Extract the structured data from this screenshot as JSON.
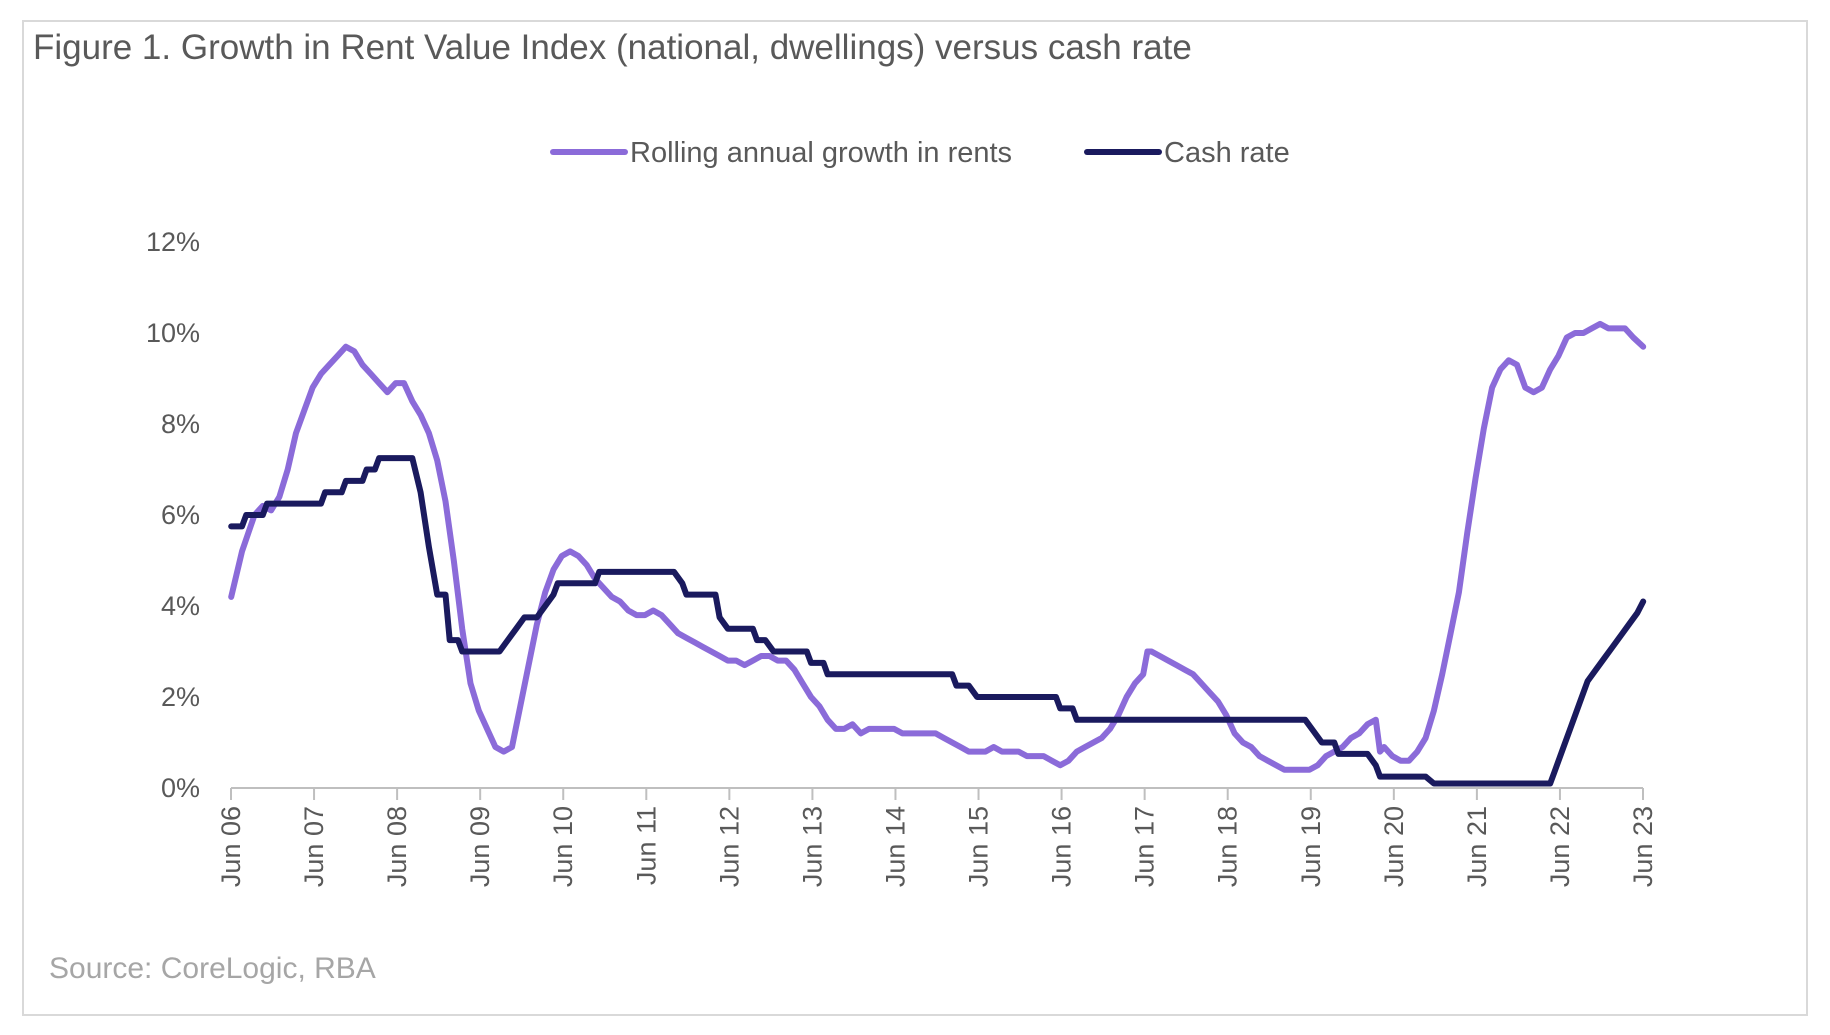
{
  "figure": {
    "title": "Figure 1. Growth in Rent Value Index (national, dwellings) versus cash rate",
    "source": "Source: CoreLogic,  RBA"
  },
  "chart_data": {
    "type": "line",
    "xlabel": "",
    "ylabel": "",
    "ylim": [
      0,
      12
    ],
    "xlim": [
      2006.417,
      2023.417
    ],
    "grid": false,
    "legend_position": "top-center",
    "y_ticks": [
      "0%",
      "2%",
      "4%",
      "6%",
      "8%",
      "10%",
      "12%"
    ],
    "x_ticks": [
      {
        "x": 2006.417,
        "label": "Jun 06"
      },
      {
        "x": 2007.417,
        "label": "Jun 07"
      },
      {
        "x": 2008.417,
        "label": "Jun 08"
      },
      {
        "x": 2009.417,
        "label": "Jun 09"
      },
      {
        "x": 2010.417,
        "label": "Jun 10"
      },
      {
        "x": 2011.417,
        "label": "Jun 11"
      },
      {
        "x": 2012.417,
        "label": "Jun 12"
      },
      {
        "x": 2013.417,
        "label": "Jun 13"
      },
      {
        "x": 2014.417,
        "label": "Jun 14"
      },
      {
        "x": 2015.417,
        "label": "Jun 15"
      },
      {
        "x": 2016.417,
        "label": "Jun 16"
      },
      {
        "x": 2017.417,
        "label": "Jun 17"
      },
      {
        "x": 2018.417,
        "label": "Jun 18"
      },
      {
        "x": 2019.417,
        "label": "Jun 19"
      },
      {
        "x": 2020.417,
        "label": "Jun 20"
      },
      {
        "x": 2021.417,
        "label": "Jun 21"
      },
      {
        "x": 2022.417,
        "label": "Jun 22"
      },
      {
        "x": 2023.417,
        "label": "Jun 23"
      }
    ],
    "series": [
      {
        "name": "Rolling annual growth in rents",
        "color": "#8b6bd9",
        "points": [
          [
            2006.42,
            4.2
          ],
          [
            2006.55,
            5.2
          ],
          [
            2006.7,
            6.0
          ],
          [
            2006.8,
            6.2
          ],
          [
            2006.9,
            6.1
          ],
          [
            2007.0,
            6.4
          ],
          [
            2007.1,
            7.0
          ],
          [
            2007.2,
            7.8
          ],
          [
            2007.3,
            8.3
          ],
          [
            2007.4,
            8.8
          ],
          [
            2007.5,
            9.1
          ],
          [
            2007.6,
            9.3
          ],
          [
            2007.7,
            9.5
          ],
          [
            2007.8,
            9.7
          ],
          [
            2007.9,
            9.6
          ],
          [
            2008.0,
            9.3
          ],
          [
            2008.1,
            9.1
          ],
          [
            2008.2,
            8.9
          ],
          [
            2008.3,
            8.7
          ],
          [
            2008.4,
            8.9
          ],
          [
            2008.5,
            8.9
          ],
          [
            2008.6,
            8.5
          ],
          [
            2008.7,
            8.2
          ],
          [
            2008.8,
            7.8
          ],
          [
            2008.9,
            7.2
          ],
          [
            2009.0,
            6.3
          ],
          [
            2009.1,
            5.0
          ],
          [
            2009.2,
            3.5
          ],
          [
            2009.3,
            2.3
          ],
          [
            2009.4,
            1.7
          ],
          [
            2009.5,
            1.3
          ],
          [
            2009.6,
            0.9
          ],
          [
            2009.7,
            0.8
          ],
          [
            2009.8,
            0.9
          ],
          [
            2009.9,
            1.8
          ],
          [
            2010.0,
            2.7
          ],
          [
            2010.1,
            3.6
          ],
          [
            2010.2,
            4.3
          ],
          [
            2010.3,
            4.8
          ],
          [
            2010.4,
            5.1
          ],
          [
            2010.5,
            5.2
          ],
          [
            2010.6,
            5.1
          ],
          [
            2010.7,
            4.9
          ],
          [
            2010.8,
            4.6
          ],
          [
            2010.9,
            4.4
          ],
          [
            2011.0,
            4.2
          ],
          [
            2011.1,
            4.1
          ],
          [
            2011.2,
            3.9
          ],
          [
            2011.3,
            3.8
          ],
          [
            2011.4,
            3.8
          ],
          [
            2011.5,
            3.9
          ],
          [
            2011.6,
            3.8
          ],
          [
            2011.7,
            3.6
          ],
          [
            2011.8,
            3.4
          ],
          [
            2011.9,
            3.3
          ],
          [
            2012.0,
            3.2
          ],
          [
            2012.1,
            3.1
          ],
          [
            2012.2,
            3.0
          ],
          [
            2012.3,
            2.9
          ],
          [
            2012.4,
            2.8
          ],
          [
            2012.5,
            2.8
          ],
          [
            2012.6,
            2.7
          ],
          [
            2012.7,
            2.8
          ],
          [
            2012.8,
            2.9
          ],
          [
            2012.9,
            2.9
          ],
          [
            2013.0,
            2.8
          ],
          [
            2013.1,
            2.8
          ],
          [
            2013.2,
            2.6
          ],
          [
            2013.3,
            2.3
          ],
          [
            2013.4,
            2.0
          ],
          [
            2013.5,
            1.8
          ],
          [
            2013.6,
            1.5
          ],
          [
            2013.7,
            1.3
          ],
          [
            2013.8,
            1.3
          ],
          [
            2013.9,
            1.4
          ],
          [
            2014.0,
            1.2
          ],
          [
            2014.1,
            1.3
          ],
          [
            2014.2,
            1.3
          ],
          [
            2014.3,
            1.3
          ],
          [
            2014.4,
            1.3
          ],
          [
            2014.5,
            1.2
          ],
          [
            2014.6,
            1.2
          ],
          [
            2014.7,
            1.2
          ],
          [
            2014.8,
            1.2
          ],
          [
            2014.9,
            1.2
          ],
          [
            2015.0,
            1.1
          ],
          [
            2015.1,
            1.0
          ],
          [
            2015.2,
            0.9
          ],
          [
            2015.3,
            0.8
          ],
          [
            2015.4,
            0.8
          ],
          [
            2015.5,
            0.8
          ],
          [
            2015.6,
            0.9
          ],
          [
            2015.7,
            0.8
          ],
          [
            2015.8,
            0.8
          ],
          [
            2015.9,
            0.8
          ],
          [
            2016.0,
            0.7
          ],
          [
            2016.1,
            0.7
          ],
          [
            2016.2,
            0.7
          ],
          [
            2016.3,
            0.6
          ],
          [
            2016.4,
            0.5
          ],
          [
            2016.5,
            0.6
          ],
          [
            2016.6,
            0.8
          ],
          [
            2016.7,
            0.9
          ],
          [
            2016.8,
            1.0
          ],
          [
            2016.9,
            1.1
          ],
          [
            2017.0,
            1.3
          ],
          [
            2017.1,
            1.6
          ],
          [
            2017.2,
            2.0
          ],
          [
            2017.3,
            2.3
          ],
          [
            2017.4,
            2.5
          ],
          [
            2017.45,
            3.0
          ],
          [
            2017.5,
            3.0
          ],
          [
            2017.6,
            2.9
          ],
          [
            2017.7,
            2.8
          ],
          [
            2017.8,
            2.7
          ],
          [
            2017.9,
            2.6
          ],
          [
            2018.0,
            2.5
          ],
          [
            2018.1,
            2.3
          ],
          [
            2018.2,
            2.1
          ],
          [
            2018.3,
            1.9
          ],
          [
            2018.4,
            1.6
          ],
          [
            2018.5,
            1.2
          ],
          [
            2018.6,
            1.0
          ],
          [
            2018.7,
            0.9
          ],
          [
            2018.8,
            0.7
          ],
          [
            2018.9,
            0.6
          ],
          [
            2019.0,
            0.5
          ],
          [
            2019.1,
            0.4
          ],
          [
            2019.2,
            0.4
          ],
          [
            2019.3,
            0.4
          ],
          [
            2019.4,
            0.4
          ],
          [
            2019.5,
            0.5
          ],
          [
            2019.6,
            0.7
          ],
          [
            2019.7,
            0.8
          ],
          [
            2019.8,
            0.9
          ],
          [
            2019.9,
            1.1
          ],
          [
            2020.0,
            1.2
          ],
          [
            2020.1,
            1.4
          ],
          [
            2020.2,
            1.5
          ],
          [
            2020.25,
            0.8
          ],
          [
            2020.3,
            0.9
          ],
          [
            2020.4,
            0.7
          ],
          [
            2020.5,
            0.6
          ],
          [
            2020.6,
            0.6
          ],
          [
            2020.7,
            0.8
          ],
          [
            2020.8,
            1.1
          ],
          [
            2020.9,
            1.7
          ],
          [
            2021.0,
            2.5
          ],
          [
            2021.1,
            3.4
          ],
          [
            2021.2,
            4.3
          ],
          [
            2021.3,
            5.6
          ],
          [
            2021.4,
            6.8
          ],
          [
            2021.5,
            7.9
          ],
          [
            2021.6,
            8.8
          ],
          [
            2021.7,
            9.2
          ],
          [
            2021.8,
            9.4
          ],
          [
            2021.9,
            9.3
          ],
          [
            2022.0,
            8.8
          ],
          [
            2022.1,
            8.7
          ],
          [
            2022.2,
            8.8
          ],
          [
            2022.3,
            9.2
          ],
          [
            2022.4,
            9.5
          ],
          [
            2022.5,
            9.9
          ],
          [
            2022.6,
            10.0
          ],
          [
            2022.7,
            10.0
          ],
          [
            2022.8,
            10.1
          ],
          [
            2022.9,
            10.2
          ],
          [
            2023.0,
            10.1
          ],
          [
            2023.1,
            10.1
          ],
          [
            2023.2,
            10.1
          ],
          [
            2023.3,
            9.9
          ],
          [
            2023.42,
            9.7
          ]
        ]
      },
      {
        "name": "Cash rate",
        "color": "#1a1a5e",
        "points": [
          [
            2006.42,
            5.75
          ],
          [
            2006.55,
            5.75
          ],
          [
            2006.6,
            6.0
          ],
          [
            2006.8,
            6.0
          ],
          [
            2006.85,
            6.25
          ],
          [
            2007.5,
            6.25
          ],
          [
            2007.55,
            6.5
          ],
          [
            2007.75,
            6.5
          ],
          [
            2007.8,
            6.75
          ],
          [
            2008.0,
            6.75
          ],
          [
            2008.05,
            7.0
          ],
          [
            2008.15,
            7.0
          ],
          [
            2008.2,
            7.25
          ],
          [
            2008.6,
            7.25
          ],
          [
            2008.7,
            6.5
          ],
          [
            2008.8,
            5.3
          ],
          [
            2008.9,
            4.25
          ],
          [
            2009.0,
            4.25
          ],
          [
            2009.05,
            3.25
          ],
          [
            2009.15,
            3.25
          ],
          [
            2009.2,
            3.0
          ],
          [
            2009.65,
            3.0
          ],
          [
            2009.75,
            3.25
          ],
          [
            2009.85,
            3.5
          ],
          [
            2009.95,
            3.75
          ],
          [
            2010.1,
            3.75
          ],
          [
            2010.2,
            4.0
          ],
          [
            2010.3,
            4.25
          ],
          [
            2010.35,
            4.5
          ],
          [
            2010.8,
            4.5
          ],
          [
            2010.85,
            4.75
          ],
          [
            2011.75,
            4.75
          ],
          [
            2011.85,
            4.5
          ],
          [
            2011.9,
            4.25
          ],
          [
            2012.25,
            4.25
          ],
          [
            2012.3,
            3.75
          ],
          [
            2012.4,
            3.5
          ],
          [
            2012.7,
            3.5
          ],
          [
            2012.75,
            3.25
          ],
          [
            2012.85,
            3.25
          ],
          [
            2012.95,
            3.0
          ],
          [
            2013.35,
            3.0
          ],
          [
            2013.4,
            2.75
          ],
          [
            2013.55,
            2.75
          ],
          [
            2013.6,
            2.5
          ],
          [
            2015.1,
            2.5
          ],
          [
            2015.15,
            2.25
          ],
          [
            2015.3,
            2.25
          ],
          [
            2015.4,
            2.0
          ],
          [
            2016.35,
            2.0
          ],
          [
            2016.4,
            1.75
          ],
          [
            2016.55,
            1.75
          ],
          [
            2016.6,
            1.5
          ],
          [
            2019.35,
            1.5
          ],
          [
            2019.45,
            1.25
          ],
          [
            2019.55,
            1.0
          ],
          [
            2019.7,
            1.0
          ],
          [
            2019.75,
            0.75
          ],
          [
            2020.1,
            0.75
          ],
          [
            2020.2,
            0.5
          ],
          [
            2020.25,
            0.25
          ],
          [
            2020.8,
            0.25
          ],
          [
            2020.9,
            0.1
          ],
          [
            2022.3,
            0.1
          ],
          [
            2022.35,
            0.35
          ],
          [
            2022.45,
            0.85
          ],
          [
            2022.55,
            1.35
          ],
          [
            2022.65,
            1.85
          ],
          [
            2022.75,
            2.35
          ],
          [
            2022.85,
            2.6
          ],
          [
            2022.95,
            2.85
          ],
          [
            2023.05,
            3.1
          ],
          [
            2023.15,
            3.35
          ],
          [
            2023.25,
            3.6
          ],
          [
            2023.35,
            3.85
          ],
          [
            2023.42,
            4.1
          ]
        ]
      }
    ]
  }
}
